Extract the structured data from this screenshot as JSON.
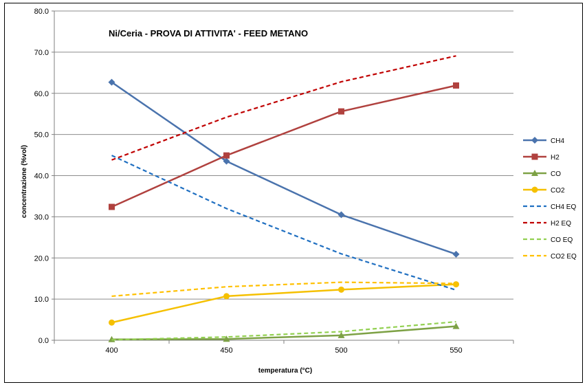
{
  "chart_data": {
    "type": "line",
    "title": "Ni/Ceria - PROVA DI ATTIVITA' - FEED METANO",
    "xlabel": "temperatura (°C)",
    "ylabel": "concentrazione (%vol)",
    "x": [
      400,
      450,
      500,
      550
    ],
    "x_tick_labels": [
      "400",
      "450",
      "500",
      "550"
    ],
    "ylim": [
      0,
      80
    ],
    "y_ticks": [
      0,
      10,
      20,
      30,
      40,
      50,
      60,
      70,
      80
    ],
    "y_tick_labels": [
      "0.0",
      "10.0",
      "20.0",
      "30.0",
      "40.0",
      "50.0",
      "60.0",
      "70.0",
      "80.0"
    ],
    "grid": "horizontal",
    "legend_position": "right",
    "series": [
      {
        "name": "CH4",
        "color": "#4a73ad",
        "style": "solid",
        "marker": "diamond",
        "values": [
          62.7,
          43.5,
          30.5,
          20.9
        ]
      },
      {
        "name": "H2",
        "color": "#b0413e",
        "style": "solid",
        "marker": "square",
        "values": [
          32.4,
          44.9,
          55.6,
          61.9
        ]
      },
      {
        "name": "CO",
        "color": "#7da145",
        "style": "solid",
        "marker": "triangle",
        "values": [
          0.2,
          0.3,
          1.2,
          3.4
        ]
      },
      {
        "name": "CO2",
        "color": "#f5c000",
        "style": "solid",
        "marker": "circle",
        "values": [
          4.3,
          10.7,
          12.3,
          13.6
        ]
      },
      {
        "name": "CH4 EQ",
        "color": "#1f6fc1",
        "style": "dashed",
        "marker": "none",
        "values": [
          44.9,
          32.0,
          21.0,
          12.2
        ]
      },
      {
        "name": "H2 EQ",
        "color": "#c00000",
        "style": "dashed",
        "marker": "none",
        "values": [
          43.8,
          54.2,
          62.8,
          69.1
        ]
      },
      {
        "name": "CO EQ",
        "color": "#92d050",
        "style": "dashed",
        "marker": "none",
        "values": [
          0.1,
          0.8,
          2.1,
          4.5
        ]
      },
      {
        "name": "CO2 EQ",
        "color": "#ffc000",
        "style": "dashed",
        "marker": "none",
        "values": [
          10.7,
          13.0,
          14.1,
          13.8
        ]
      }
    ]
  }
}
